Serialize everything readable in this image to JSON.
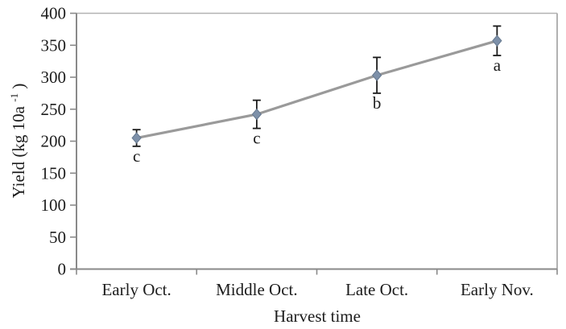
{
  "chart_data": {
    "type": "line",
    "title": "",
    "xlabel": "Harvest time",
    "ylabel": "Yield (kg 10a⁻¹)",
    "ylabel_parts": {
      "main": "Yield (kg 10a",
      "sup": "-1",
      "close": ")"
    },
    "categories": [
      "Early Oct.",
      "Middle Oct.",
      "Late Oct.",
      "Early Nov."
    ],
    "series": [
      {
        "name": "Yield",
        "values": [
          205,
          242,
          303,
          357
        ],
        "error_bars": [
          13,
          22,
          28,
          23
        ],
        "sig_letters": [
          "c",
          "c",
          "b",
          "a"
        ]
      }
    ],
    "ylim": [
      0,
      400
    ],
    "yticks": [
      0,
      50,
      100,
      150,
      200,
      250,
      300,
      350,
      400
    ],
    "grid": false,
    "legend": false,
    "marker": "diamond",
    "colors": {
      "line": "#9a9a9a",
      "marker_fill": "#7d90a9",
      "marker_stroke": "#65788f",
      "error_bar": "#1a1a1a",
      "axis": "#8a8a8a",
      "border": "#b2b2b2",
      "text": "#1c1c1c"
    }
  }
}
